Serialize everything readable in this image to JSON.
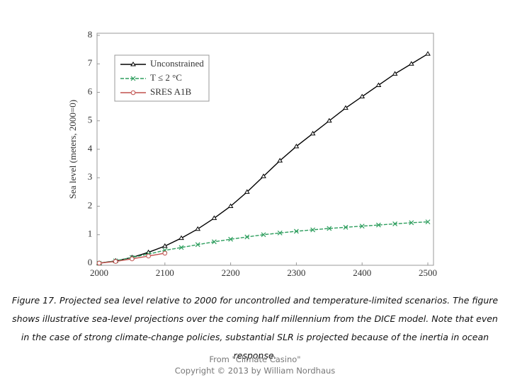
{
  "chart_data": {
    "type": "line",
    "y_label": "Sea level (meters, 2000=0)",
    "x": [
      2000,
      2025,
      2050,
      2075,
      2100,
      2125,
      2150,
      2175,
      2200,
      2225,
      2250,
      2275,
      2300,
      2325,
      2350,
      2375,
      2400,
      2425,
      2450,
      2475,
      2500
    ],
    "series": [
      {
        "name": "Unconstrained",
        "color": "#000000",
        "marker": "triangle",
        "values": [
          0,
          0.08,
          0.2,
          0.38,
          0.6,
          0.88,
          1.2,
          1.58,
          2.0,
          2.5,
          3.05,
          3.6,
          4.1,
          4.55,
          5.0,
          5.45,
          5.85,
          6.25,
          6.65,
          7.0,
          7.35
        ]
      },
      {
        "name": "T ≤ 2 °C",
        "color": "#2e9e5e",
        "marker": "x",
        "values": [
          0,
          0.08,
          0.2,
          0.32,
          0.45,
          0.55,
          0.65,
          0.75,
          0.84,
          0.92,
          1.0,
          1.06,
          1.12,
          1.17,
          1.22,
          1.26,
          1.3,
          1.34,
          1.38,
          1.42,
          1.45
        ]
      },
      {
        "name": "SRES A1B",
        "color": "#c0504d",
        "marker": "circle",
        "values": [
          0,
          0.06,
          0.15,
          0.25,
          0.35,
          null,
          null,
          null,
          null,
          null,
          null,
          null,
          null,
          null,
          null,
          null,
          null,
          null,
          null,
          null,
          null
        ]
      }
    ],
    "xlim": [
      2000,
      2500
    ],
    "xticks": [
      2000,
      2100,
      2200,
      2300,
      2400,
      2500
    ],
    "ylim": [
      0,
      8
    ],
    "yticks": [
      0,
      1,
      2,
      3,
      4,
      5,
      6,
      7,
      8
    ],
    "legend": "upper-left",
    "grid": false
  },
  "caption": "Figure 17. Projected sea level relative to 2000 for uncontrolled and temperature-limited scenarios. The figure shows illustrative sea-level projections over the coming half millennium from the DICE model. Note that even in the case of strong climate-change policies, substantial SLR is projected because of the inertia in ocean response.",
  "footer": [
    "From \"Climate Casino\"",
    "Copyright © 2013 by William Nordhaus"
  ]
}
